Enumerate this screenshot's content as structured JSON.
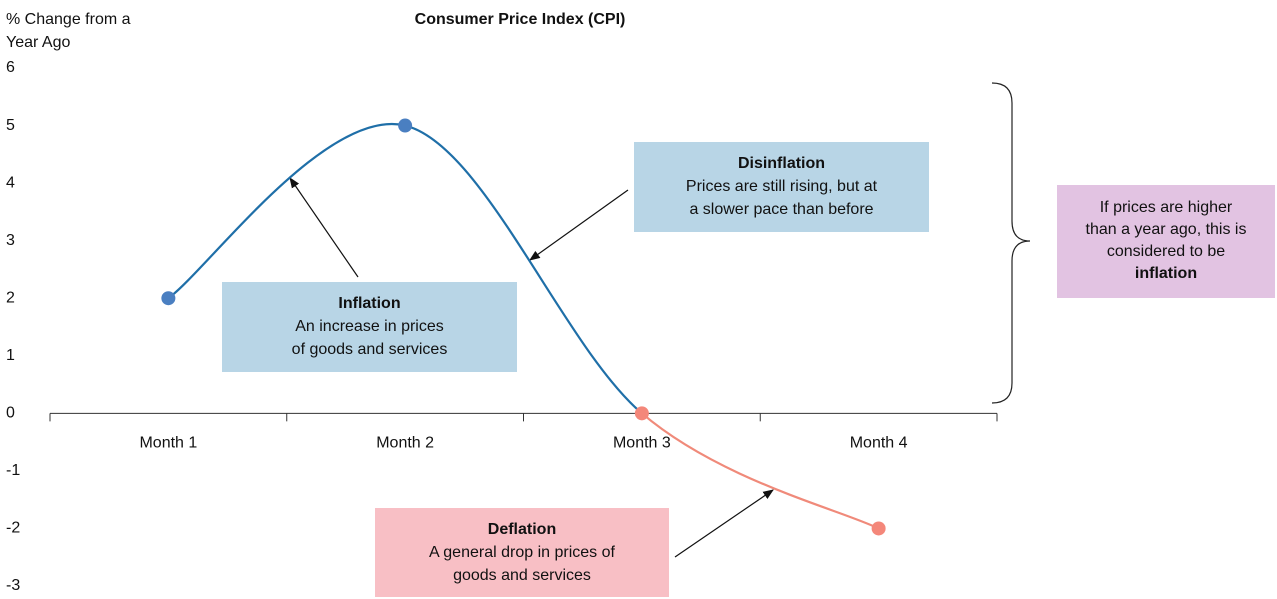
{
  "chart_data": {
    "type": "line",
    "title": "Consumer Price Index (CPI)",
    "y_label": [
      "% Change from a",
      "Year Ago"
    ],
    "categories": [
      "Month 1",
      "Month 2",
      "Month 3",
      "Month 4"
    ],
    "values": [
      2,
      5,
      0,
      -2
    ],
    "point_colors": [
      "#4a7fc1",
      "#4a7fc1",
      "#f4877a",
      "#f4877a"
    ],
    "line_colors": [
      "#1f6fa8",
      "#1f6fa8",
      "#f08a7a"
    ],
    "ylim": [
      -3,
      6
    ],
    "yticks": [
      -3,
      -2,
      -1,
      0,
      1,
      2,
      3,
      4,
      5,
      6
    ],
    "grid": false,
    "annotations": [
      {
        "title": "Inflation",
        "text": [
          "An increase in prices",
          "of goods and services"
        ],
        "color": "#b8d5e6"
      },
      {
        "title": "Disinflation",
        "text": [
          "Prices are still rising, but at",
          "a slower pace than before"
        ],
        "color": "#b8d5e6"
      },
      {
        "title": "Deflation",
        "text": [
          "A general drop in prices of",
          "goods and services"
        ],
        "color": "#f8bfc5"
      }
    ],
    "side_note": {
      "text": [
        "If prices are higher",
        "than a year ago, this is",
        "considered to be"
      ],
      "emphasis": "inflation",
      "color": "#e2c3e2"
    }
  }
}
